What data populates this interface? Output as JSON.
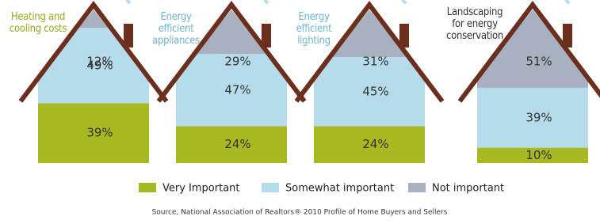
{
  "chart_data": {
    "type": "stacked-house",
    "categories": [
      "Heating and cooling costs",
      "Energy efficient appliances",
      "Energy efficient lighting",
      "Landscaping for energy conservation"
    ],
    "category_colors": [
      "#9aa61e",
      "#6fb3cf",
      "#6fb3cf",
      "#333333"
    ],
    "series": [
      {
        "name": "Very Important",
        "color": "#a8b820",
        "values": [
          39,
          24,
          24,
          10
        ],
        "value_labels": [
          "39%",
          "24%",
          "24%",
          "10%"
        ]
      },
      {
        "name": "Somewhat important",
        "color": "#b6dceb",
        "values": [
          49,
          47,
          45,
          39
        ],
        "value_labels": [
          "49%",
          "47%",
          "45%",
          "39%"
        ]
      },
      {
        "name": "Not important",
        "color": "#a9b1c1",
        "values": [
          12,
          29,
          31,
          51
        ],
        "value_labels": [
          "12%",
          "29%",
          "31%",
          "51%"
        ]
      }
    ],
    "roof_color": "#6b2f1e",
    "source": "Source, National Association of Realtors® 2010 Profile of Home Buyers and Sellers"
  }
}
